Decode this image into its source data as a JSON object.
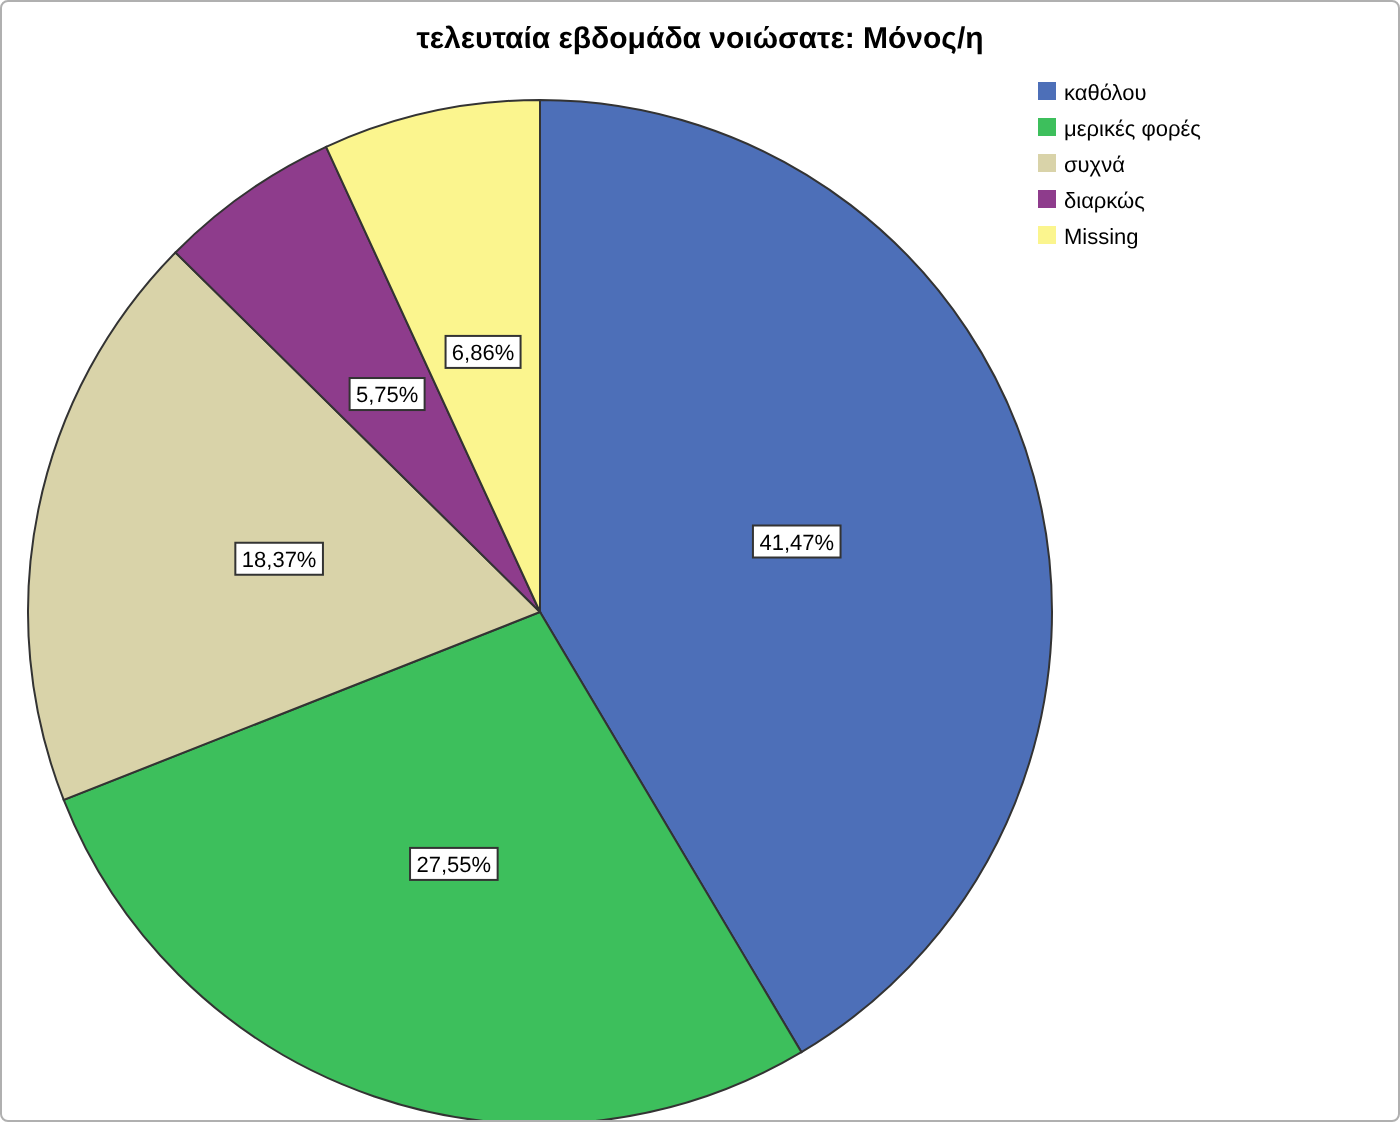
{
  "chart_data": {
    "type": "pie",
    "title": "τελευταία εβδομάδα νοιώσατε: Μόνος/η",
    "categories": [
      "καθόλου",
      "μερικές φορές",
      "συχνά",
      "διαρκώς",
      "Missing"
    ],
    "values": [
      41.47,
      27.55,
      18.37,
      5.75,
      6.86
    ],
    "value_labels": [
      "41,47%",
      "27,55%",
      "18,37%",
      "5,75%",
      "6,86%"
    ],
    "colors": [
      "#4d6fb8",
      "#3dbf5c",
      "#d9d3a9",
      "#8e3c8c",
      "#fbf58e"
    ],
    "legend": "top right"
  }
}
